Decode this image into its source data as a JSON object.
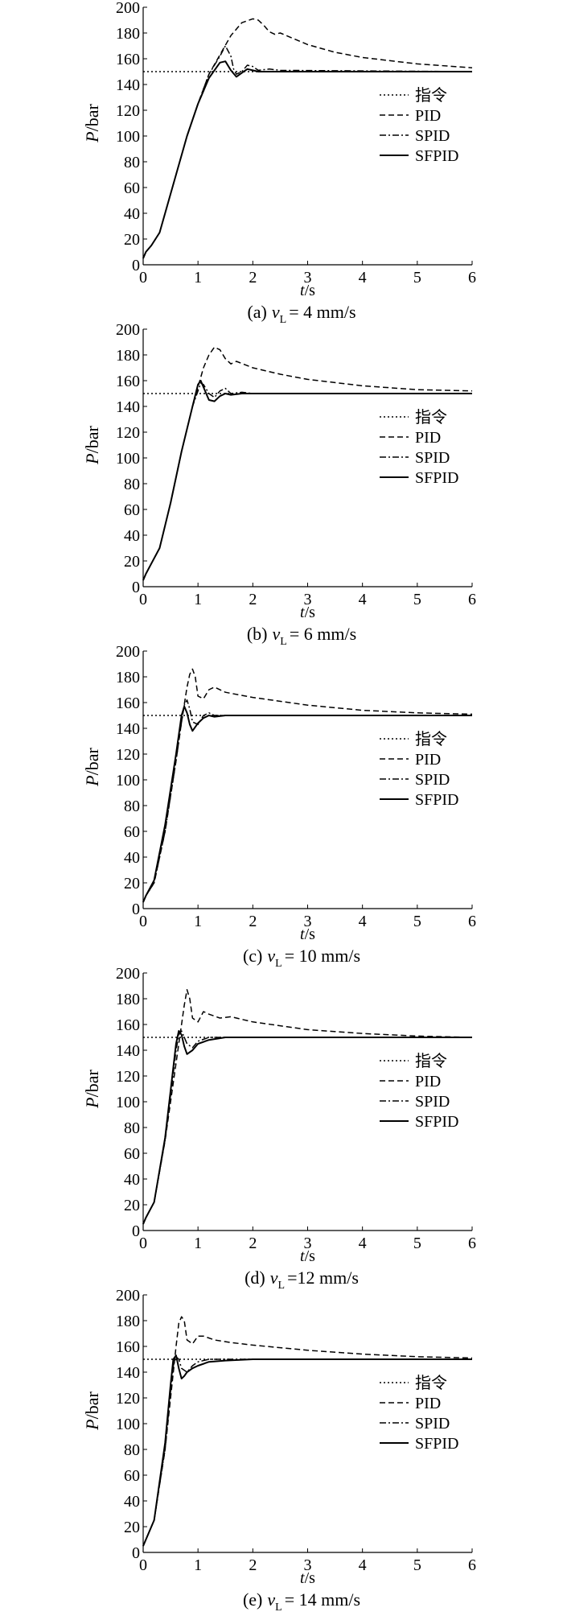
{
  "legend_labels": [
    "指令",
    "PID",
    "SPID",
    "SFPID"
  ],
  "line_styles": {
    "指令": "dotted",
    "PID": "dashed",
    "SPID": "dash-dot",
    "SFPID": "solid"
  },
  "colors": {
    "axis": "#000000",
    "series": "#000000",
    "background": "#ffffff"
  },
  "chart_data": [
    {
      "type": "line",
      "caption": {
        "letter": "(a)",
        "var": "v",
        "sub": "L",
        "value": "= 4 mm/s"
      },
      "xlabel": {
        "var": "t",
        "unit": "/s"
      },
      "ylabel": {
        "var": "P",
        "unit": "/bar"
      },
      "xlim": [
        0,
        6
      ],
      "ylim": [
        0,
        200
      ],
      "xticks": [
        0,
        1,
        2,
        3,
        4,
        5,
        6
      ],
      "yticks": [
        0,
        20,
        40,
        60,
        80,
        100,
        120,
        140,
        160,
        180,
        200
      ],
      "legend_position": "right",
      "series": [
        {
          "name": "指令",
          "style": "dotted",
          "x": [
            0,
            6
          ],
          "y": [
            150,
            150
          ]
        },
        {
          "name": "PID",
          "style": "dashed",
          "x": [
            0,
            0.05,
            0.15,
            0.3,
            0.5,
            0.8,
            1.0,
            1.2,
            1.4,
            1.6,
            1.8,
            2.0,
            2.1,
            2.2,
            2.3,
            2.4,
            2.5,
            3.0,
            3.5,
            4.0,
            5.0,
            6.0
          ],
          "y": [
            5,
            10,
            15,
            25,
            55,
            100,
            125,
            148,
            163,
            178,
            188,
            191,
            190,
            186,
            181,
            179,
            180,
            171,
            165,
            161,
            156,
            153
          ]
        },
        {
          "name": "SPID",
          "style": "dash-dot",
          "x": [
            0,
            0.05,
            0.15,
            0.3,
            0.5,
            0.8,
            1.0,
            1.2,
            1.4,
            1.5,
            1.6,
            1.65,
            1.7,
            1.8,
            1.9,
            2.0,
            2.1,
            2.3,
            2.5,
            6.0
          ],
          "y": [
            5,
            10,
            15,
            25,
            55,
            100,
            125,
            148,
            162,
            170,
            162,
            152,
            148,
            150,
            155,
            154,
            151,
            152,
            151,
            150
          ]
        },
        {
          "name": "SFPID",
          "style": "solid",
          "x": [
            0,
            0.05,
            0.15,
            0.3,
            0.5,
            0.8,
            1.0,
            1.2,
            1.4,
            1.5,
            1.6,
            1.7,
            1.8,
            1.9,
            2.0,
            2.1,
            2.3,
            2.5,
            6.0
          ],
          "y": [
            5,
            10,
            15,
            25,
            55,
            100,
            125,
            145,
            157,
            158,
            151,
            146,
            149,
            152,
            151,
            150,
            150,
            150,
            150
          ]
        }
      ]
    },
    {
      "type": "line",
      "caption": {
        "letter": "(b)",
        "var": "v",
        "sub": "L",
        "value": "= 6 mm/s"
      },
      "xlabel": {
        "var": "t",
        "unit": "/s"
      },
      "ylabel": {
        "var": "P",
        "unit": "/bar"
      },
      "xlim": [
        0,
        6
      ],
      "ylim": [
        0,
        200
      ],
      "xticks": [
        0,
        1,
        2,
        3,
        4,
        5,
        6
      ],
      "yticks": [
        0,
        20,
        40,
        60,
        80,
        100,
        120,
        140,
        160,
        180,
        200
      ],
      "legend_position": "right",
      "series": [
        {
          "name": "指令",
          "style": "dotted",
          "x": [
            0,
            6
          ],
          "y": [
            150,
            150
          ]
        },
        {
          "name": "PID",
          "style": "dashed",
          "x": [
            0,
            0.05,
            0.15,
            0.3,
            0.5,
            0.7,
            0.9,
            1.0,
            1.1,
            1.2,
            1.3,
            1.4,
            1.5,
            1.6,
            1.7,
            2.0,
            2.5,
            3.0,
            4.0,
            5.0,
            6.0
          ],
          "y": [
            5,
            10,
            18,
            30,
            65,
            105,
            140,
            155,
            170,
            180,
            186,
            184,
            177,
            173,
            175,
            170,
            165,
            161,
            156,
            153,
            152
          ]
        },
        {
          "name": "SPID",
          "style": "dash-dot",
          "x": [
            0,
            0.05,
            0.15,
            0.3,
            0.5,
            0.7,
            0.9,
            1.0,
            1.05,
            1.1,
            1.2,
            1.3,
            1.4,
            1.5,
            1.6,
            1.8,
            2.0,
            6.0
          ],
          "y": [
            5,
            10,
            18,
            30,
            65,
            105,
            140,
            152,
            158,
            157,
            150,
            147,
            152,
            154,
            150,
            151,
            150,
            150
          ]
        },
        {
          "name": "SFPID",
          "style": "solid",
          "x": [
            0,
            0.05,
            0.15,
            0.3,
            0.5,
            0.7,
            0.9,
            1.0,
            1.05,
            1.1,
            1.2,
            1.3,
            1.4,
            1.5,
            1.6,
            1.8,
            2.0,
            6.0
          ],
          "y": [
            5,
            10,
            18,
            30,
            65,
            105,
            140,
            157,
            160,
            155,
            145,
            144,
            148,
            150,
            149,
            150,
            150,
            150
          ]
        }
      ]
    },
    {
      "type": "line",
      "caption": {
        "letter": "(c)",
        "var": "v",
        "sub": "L",
        "value": "= 10 mm/s"
      },
      "xlabel": {
        "var": "t",
        "unit": "/s"
      },
      "ylabel": {
        "var": "P",
        "unit": "/bar"
      },
      "xlim": [
        0,
        6
      ],
      "ylim": [
        0,
        200
      ],
      "xticks": [
        0,
        1,
        2,
        3,
        4,
        5,
        6
      ],
      "yticks": [
        0,
        20,
        40,
        60,
        80,
        100,
        120,
        140,
        160,
        180,
        200
      ],
      "legend_position": "right",
      "series": [
        {
          "name": "指令",
          "style": "dotted",
          "x": [
            0,
            6
          ],
          "y": [
            150,
            150
          ]
        },
        {
          "name": "PID",
          "style": "dashed",
          "x": [
            0,
            0.05,
            0.2,
            0.4,
            0.6,
            0.7,
            0.8,
            0.85,
            0.9,
            0.95,
            1.0,
            1.1,
            1.2,
            1.3,
            1.5,
            2.0,
            3.0,
            4.0,
            5.0,
            6.0
          ],
          "y": [
            5,
            10,
            20,
            60,
            115,
            145,
            172,
            182,
            186,
            180,
            165,
            163,
            170,
            172,
            168,
            164,
            158,
            154,
            152,
            151
          ]
        },
        {
          "name": "SPID",
          "style": "dash-dot",
          "x": [
            0,
            0.05,
            0.2,
            0.4,
            0.6,
            0.7,
            0.75,
            0.8,
            0.85,
            0.9,
            1.0,
            1.1,
            1.2,
            1.3,
            1.5,
            6.0
          ],
          "y": [
            5,
            10,
            20,
            60,
            115,
            145,
            158,
            162,
            155,
            145,
            143,
            150,
            152,
            150,
            150,
            150
          ]
        },
        {
          "name": "SFPID",
          "style": "solid",
          "x": [
            0,
            0.05,
            0.2,
            0.4,
            0.6,
            0.7,
            0.75,
            0.8,
            0.85,
            0.9,
            1.0,
            1.1,
            1.2,
            1.3,
            1.5,
            6.0
          ],
          "y": [
            5,
            10,
            22,
            65,
            120,
            150,
            157,
            152,
            143,
            138,
            144,
            148,
            150,
            149,
            150,
            150
          ]
        }
      ]
    },
    {
      "type": "line",
      "caption": {
        "letter": "(d)",
        "var": "v",
        "sub": "L",
        "value": "=12 mm/s"
      },
      "xlabel": {
        "var": "t",
        "unit": "/s"
      },
      "ylabel": {
        "var": "P",
        "unit": "/bar"
      },
      "xlim": [
        0,
        6
      ],
      "ylim": [
        0,
        200
      ],
      "xticks": [
        0,
        1,
        2,
        3,
        4,
        5,
        6
      ],
      "yticks": [
        0,
        20,
        40,
        60,
        80,
        100,
        120,
        140,
        160,
        180,
        200
      ],
      "legend_position": "right",
      "series": [
        {
          "name": "指令",
          "style": "dotted",
          "x": [
            0,
            6
          ],
          "y": [
            150,
            150
          ]
        },
        {
          "name": "PID",
          "style": "dashed",
          "x": [
            0,
            0.05,
            0.2,
            0.4,
            0.6,
            0.7,
            0.75,
            0.8,
            0.85,
            0.9,
            1.0,
            1.1,
            1.2,
            1.4,
            1.6,
            2.0,
            3.0,
            4.0,
            5.0,
            6.0
          ],
          "y": [
            5,
            10,
            22,
            70,
            130,
            160,
            175,
            187,
            180,
            165,
            162,
            170,
            168,
            165,
            166,
            162,
            156,
            153,
            151,
            150
          ]
        },
        {
          "name": "SPID",
          "style": "dash-dot",
          "x": [
            0,
            0.05,
            0.2,
            0.4,
            0.6,
            0.65,
            0.7,
            0.75,
            0.8,
            0.9,
            1.0,
            1.2,
            1.5,
            6.0
          ],
          "y": [
            5,
            10,
            22,
            70,
            140,
            152,
            155,
            150,
            145,
            142,
            147,
            150,
            150,
            150
          ]
        },
        {
          "name": "SFPID",
          "style": "solid",
          "x": [
            0,
            0.05,
            0.2,
            0.4,
            0.6,
            0.65,
            0.7,
            0.75,
            0.8,
            0.9,
            1.0,
            1.2,
            1.5,
            6.0
          ],
          "y": [
            5,
            10,
            22,
            72,
            145,
            155,
            152,
            143,
            137,
            140,
            145,
            148,
            150,
            150
          ]
        }
      ]
    },
    {
      "type": "line",
      "caption": {
        "letter": "(e)",
        "var": "v",
        "sub": "L",
        "value": "= 14 mm/s"
      },
      "xlabel": {
        "var": "t",
        "unit": "/s"
      },
      "ylabel": {
        "var": "P",
        "unit": "/bar"
      },
      "xlim": [
        0,
        6
      ],
      "ylim": [
        0,
        200
      ],
      "xticks": [
        0,
        1,
        2,
        3,
        4,
        5,
        6
      ],
      "yticks": [
        0,
        20,
        40,
        60,
        80,
        100,
        120,
        140,
        160,
        180,
        200
      ],
      "legend_position": "right",
      "series": [
        {
          "name": "指令",
          "style": "dotted",
          "x": [
            0,
            6
          ],
          "y": [
            150,
            150
          ]
        },
        {
          "name": "PID",
          "style": "dashed",
          "x": [
            0,
            0.05,
            0.2,
            0.4,
            0.5,
            0.6,
            0.65,
            0.7,
            0.75,
            0.8,
            0.9,
            1.0,
            1.1,
            1.3,
            1.6,
            2.0,
            3.0,
            4.0,
            5.0,
            6.0
          ],
          "y": [
            5,
            10,
            25,
            80,
            120,
            160,
            178,
            183,
            180,
            165,
            162,
            168,
            168,
            165,
            163,
            161,
            157,
            154,
            152,
            151
          ]
        },
        {
          "name": "SPID",
          "style": "dash-dot",
          "x": [
            0,
            0.05,
            0.2,
            0.4,
            0.5,
            0.55,
            0.6,
            0.65,
            0.7,
            0.8,
            0.9,
            1.0,
            1.2,
            1.5,
            6.0
          ],
          "y": [
            5,
            10,
            25,
            80,
            125,
            145,
            152,
            150,
            143,
            140,
            145,
            148,
            150,
            150,
            150
          ]
        },
        {
          "name": "SFPID",
          "style": "solid",
          "x": [
            0,
            0.05,
            0.2,
            0.4,
            0.5,
            0.55,
            0.6,
            0.65,
            0.7,
            0.75,
            0.8,
            0.9,
            1.0,
            1.2,
            1.5,
            2.0,
            6.0
          ],
          "y": [
            5,
            10,
            25,
            85,
            130,
            150,
            153,
            143,
            135,
            137,
            140,
            143,
            145,
            148,
            149,
            150,
            150
          ]
        }
      ]
    }
  ]
}
